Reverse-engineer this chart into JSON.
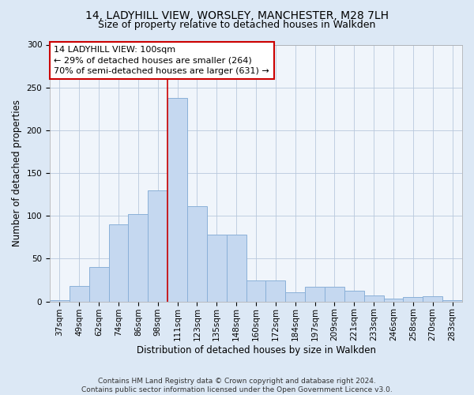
{
  "title_line1": "14, LADYHILL VIEW, WORSLEY, MANCHESTER, M28 7LH",
  "title_line2": "Size of property relative to detached houses in Walkden",
  "xlabel": "Distribution of detached houses by size in Walkden",
  "ylabel": "Number of detached properties",
  "categories": [
    "37sqm",
    "49sqm",
    "62sqm",
    "74sqm",
    "86sqm",
    "98sqm",
    "111sqm",
    "123sqm",
    "135sqm",
    "148sqm",
    "160sqm",
    "172sqm",
    "184sqm",
    "197sqm",
    "209sqm",
    "221sqm",
    "233sqm",
    "246sqm",
    "258sqm",
    "270sqm",
    "283sqm"
  ],
  "values": [
    2,
    18,
    40,
    90,
    102,
    130,
    238,
    111,
    78,
    78,
    25,
    25,
    11,
    17,
    17,
    13,
    7,
    3,
    5,
    6,
    2
  ],
  "bar_color": "#c5d8f0",
  "bar_edge_color": "#8ab0d8",
  "vline_x_index": 5.5,
  "vline_color": "#cc0000",
  "annotation_text": "14 LADYHILL VIEW: 100sqm\n← 29% of detached houses are smaller (264)\n70% of semi-detached houses are larger (631) →",
  "annotation_box_color": "#ffffff",
  "annotation_box_edge": "#cc0000",
  "ylim": [
    0,
    300
  ],
  "yticks": [
    0,
    50,
    100,
    150,
    200,
    250,
    300
  ],
  "footnote": "Contains HM Land Registry data © Crown copyright and database right 2024.\nContains public sector information licensed under the Open Government Licence v3.0.",
  "background_color": "#dce8f5",
  "plot_background": "#f0f5fb",
  "grid_color": "#b8c8dc",
  "title_fontsize": 10,
  "subtitle_fontsize": 9,
  "axis_label_fontsize": 8.5,
  "tick_fontsize": 7.5,
  "annotation_fontsize": 8,
  "footnote_fontsize": 6.5
}
